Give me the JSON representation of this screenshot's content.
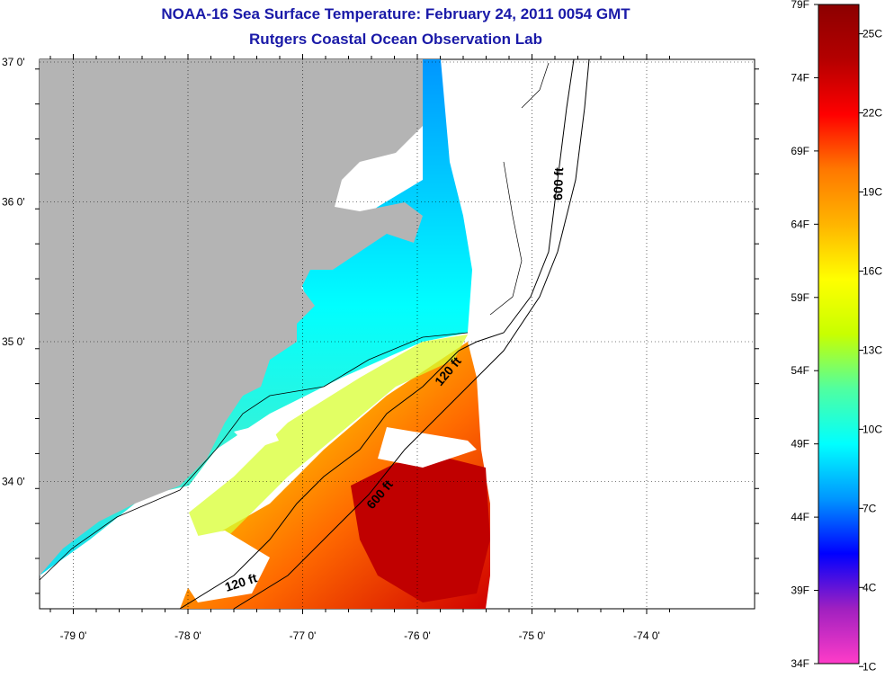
{
  "title": "NOAA-16 Sea Surface Temperature:  February 24, 2011 0054 GMT",
  "subtitle": "Rutgers Coastal Ocean Observation Lab",
  "latitude_labels": [
    {
      "label": "37 0'",
      "lat": 37
    },
    {
      "label": "36 0'",
      "lat": 36
    },
    {
      "label": "35 0'",
      "lat": 35
    },
    {
      "label": "34 0'",
      "lat": 34
    }
  ],
  "longitude_labels": [
    {
      "label": "-79 0'",
      "lon": -79
    },
    {
      "label": "-78 0'",
      "lon": -78
    },
    {
      "label": "-77 0'",
      "lon": -77
    },
    {
      "label": "-76 0'",
      "lon": -76
    },
    {
      "label": "-75 0'",
      "lon": -75
    },
    {
      "label": "-74 0'",
      "lon": -74
    }
  ],
  "contour_labels": [
    {
      "label": "600 ft",
      "name": "contour-label-600ft-north"
    },
    {
      "label": "120 ft",
      "name": "contour-label-120ft-north"
    },
    {
      "label": "600 ft",
      "name": "contour-label-600ft-south"
    },
    {
      "label": "120 ft",
      "name": "contour-label-120ft-south"
    }
  ],
  "colorbar": {
    "fahrenheit": [
      "79F",
      "74F",
      "69F",
      "64F",
      "59F",
      "54F",
      "49F",
      "44F",
      "39F",
      "34F"
    ],
    "celsius": [
      "25C",
      "22C",
      "19C",
      "16C",
      "13C",
      "10C",
      "7C",
      "4C",
      "1C"
    ],
    "colors": [
      "#ff3cc8",
      "#a020c0",
      "#0000ff",
      "#0096ff",
      "#00ffff",
      "#50ffa0",
      "#c8ff00",
      "#ffff00",
      "#ffb400",
      "#ff7800",
      "#ff0000",
      "#b40000",
      "#8c0000"
    ]
  },
  "colors": {
    "land": "#b4b4b4",
    "title": "#1a1aa8",
    "grid": "#000000"
  }
}
